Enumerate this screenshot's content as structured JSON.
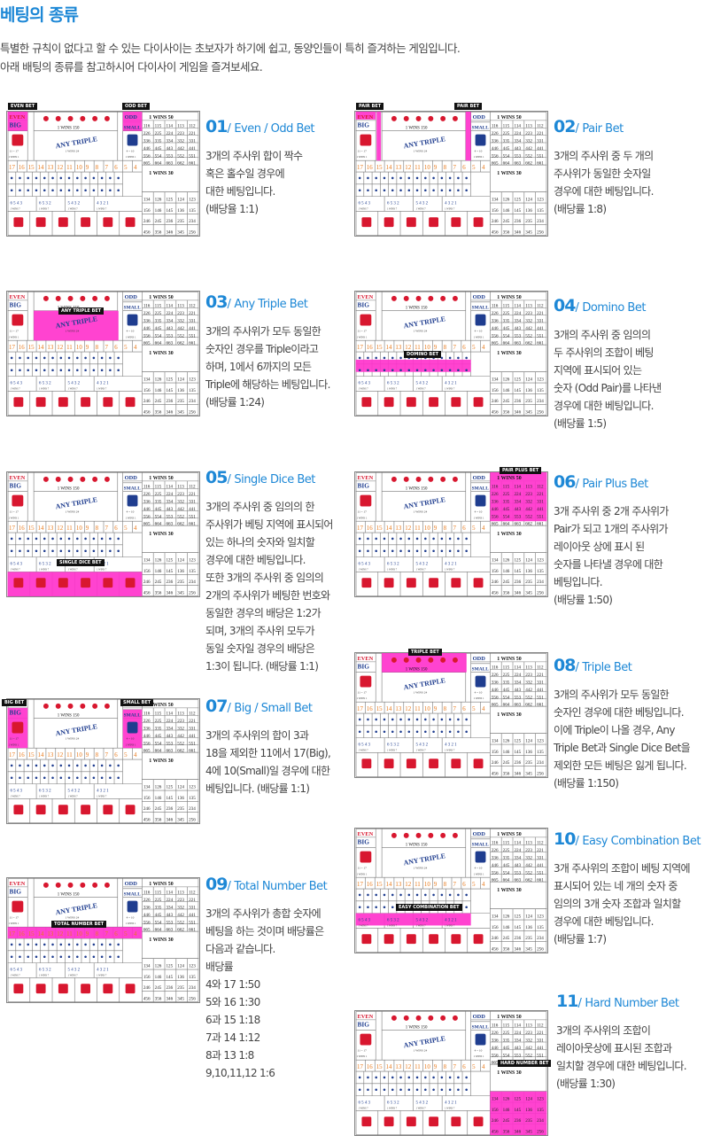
{
  "page": {
    "title": "베팅의 종류",
    "intro": [
      "특별한 규칙이 없다고 할 수 있는 다이사이는 초보자가 하기에 쉽고, 동양인들이 특히 즐겨하는 게임입니다.",
      "아래 배팅의 종류를 참고하시어 다이사이 게임을 즐겨보세요."
    ]
  },
  "board_text": {
    "even": "EVEN",
    "big": "BIG",
    "odd": "ODD",
    "small": "SMALL",
    "wins50": "1  WINS  50",
    "wins150": "1  WINS  150",
    "wins30": "1  WINS  30",
    "any_triple": "ANY TRIPLE",
    "wins24": "1  WINS  24",
    "range_big": "11 ~ 17",
    "range_small": "4 ~ 10",
    "win1": "1  WINS  1",
    "totals": [
      "17",
      "16",
      "15",
      "14",
      "13",
      "12",
      "11",
      "10",
      "9",
      "8",
      "7",
      "6",
      "5",
      "4"
    ],
    "triples": [
      [
        "116",
        "115",
        "114",
        "113",
        "112"
      ],
      [
        "226",
        "225",
        "224",
        "223",
        "221"
      ],
      [
        "336",
        "335",
        "334",
        "332",
        "331"
      ],
      [
        "446",
        "445",
        "443",
        "442",
        "441"
      ],
      [
        "556",
        "554",
        "553",
        "552",
        "551"
      ],
      [
        "665",
        "664",
        "663",
        "662",
        "661"
      ]
    ],
    "combos": [
      [
        "134",
        "126",
        "125",
        "124",
        "123"
      ],
      [
        "156",
        "146",
        "145",
        "136",
        "135"
      ],
      [
        "246",
        "245",
        "236",
        "235",
        "234"
      ],
      [
        "456",
        "356",
        "346",
        "345",
        "256"
      ]
    ],
    "groups": [
      "6 5 4 3",
      "6 5 3 2",
      "5 4 3 2",
      "4 3 2 1"
    ]
  },
  "bets": [
    {
      "num": "01",
      "name": "Even / Odd Bet",
      "tags": [
        "EVEN BET",
        "ODD BET"
      ],
      "highlight": "evenodd",
      "lines": [
        "3개의 주사위 합이 짝수",
        "혹은 홀수일 경우에",
        "대한 베팅입니다.",
        "(배당율 1:1)"
      ]
    },
    {
      "num": "02",
      "name": "Pair Bet",
      "tags": [
        "PAIR BET",
        "PAIR BET"
      ],
      "highlight": "pair",
      "lines": [
        "3개의 주사위 중 두 개의",
        "주사위가 동일한 숫자일",
        "경우에 대한 베팅입니다.",
        "(배당률 1:8)"
      ]
    },
    {
      "num": "03",
      "name": "Any Triple Bet",
      "tags": [
        "ANY TRIPLE BET"
      ],
      "highlight": "anytriple",
      "lines": [
        "3개의 주사위가 모두 동일한",
        "숫자인 경우를 Triple이라고",
        "하며, 1에서 6까지의 모든",
        "Triple에 해당하는 베팅입니다.",
        "(배당률 1:24)"
      ]
    },
    {
      "num": "04",
      "name": "Domino Bet",
      "tags": [
        "DOMINO BET"
      ],
      "highlight": "domino",
      "lines": [
        "3개의 주사위 중 임의의",
        "두 주사위의 조합이 베팅",
        "지역에 표시되어 있는",
        "숫자 (Odd Pair)를 나타낸",
        "경우에 대한 베팅입니다.",
        "(배당률 1:5)"
      ]
    },
    {
      "num": "05",
      "name": "Single Dice Bet",
      "tags": [
        "SINGLE DICE BET"
      ],
      "highlight": "single",
      "lines": [
        "3개의 주사위 중 임의의 한",
        "주사위가 베팅 지역에 표시되어",
        "있는 하나의 숫자와 일치할",
        "경우에 대한 베팅입니다.",
        "또한 3개의 주사위 중 임의의",
        "2개의 주사위가 베팅한 번호와",
        "동일한 경우의 배당은 1:2가",
        "되며, 3개의 주사위 모두가",
        "동일 숫자일 경우의 배당은",
        "1:3이 됩니다. (배당률 1:1)"
      ]
    },
    {
      "num": "06",
      "name": "Pair Plus Bet",
      "tags": [
        "PAIR PLUS BET"
      ],
      "highlight": "pairplus",
      "lines": [
        "3개 주사위 중 2개 주사위가",
        "Pair가 되고 1개의 주사위가",
        "레이아웃 상에 표시 된",
        "숫자를 나타낼 경우에 대한",
        "베팅입니다.",
        "(배당률 1:50)"
      ]
    },
    {
      "num": "07",
      "name": "Big / Small Bet",
      "tags": [
        "BIG BET",
        "SMALL BET"
      ],
      "highlight": "bigsmall",
      "lines": [
        "3개의 주사위의 합이 3과",
        "18을 제외한 11에서 17(Big),",
        "4에 10(Small)일 경우에 대한",
        "베팅입니다. (배당률 1:1)"
      ]
    },
    {
      "num": "08",
      "name": "Triple Bet",
      "tags": [
        "TRIPLE BET"
      ],
      "highlight": "triple",
      "lines": [
        "3개의 주사위가 모두 동일한",
        "숫자인 경우에 대한 베팅입니다.",
        "이에 Triple이 나올 경우, Any",
        "Triple Bet과 Single Dice Bet을",
        "제외한 모든 베팅은 잃게 됩니다.",
        "(배당률 1:150)"
      ]
    },
    {
      "num": "09",
      "name": "Total Number Bet",
      "tags": [
        "TOTAL NUMBER BET"
      ],
      "highlight": "total",
      "lines": [
        "3개의 주사위가 총합 숫자에",
        "베팅을 하는 것이며 배당률은",
        "다음과 같습니다.",
        "배당률",
        "4와 17    1:50",
        "5와 16    1:30",
        "6과 15    1:18",
        "7과 14    1:12",
        "8과 13    1:8",
        "9,10,11,12    1:6"
      ]
    },
    {
      "num": "10",
      "name": "Easy Combination Bet",
      "tags": [
        "EASY COMBINATION BET"
      ],
      "highlight": "easy",
      "lines": [
        "3개 주사위의 조합이 베팅 지역에",
        "표시되어 있는 네 개의 숫자 중",
        "임의의 3개 숫자 조합과 일치할",
        "경우에 대한 베팅입니다.",
        "(배당률 1:7)"
      ]
    },
    {
      "num": "11",
      "name": "Hard Number Bet",
      "tags": [
        "HARD NUMBER BET"
      ],
      "highlight": "hard",
      "lines": [
        "3개의 주사위의 조합이",
        "레이아웃상에 표시된 조합과",
        "일치할 경우에 대한 베팅입니다.",
        "(배당률 1:30)"
      ]
    }
  ],
  "colors": {
    "accent": "#1e88d6",
    "highlight": "#ff33cc",
    "red": "#d8172f",
    "navy": "#1f3d8f",
    "orange": "#e8791a"
  }
}
